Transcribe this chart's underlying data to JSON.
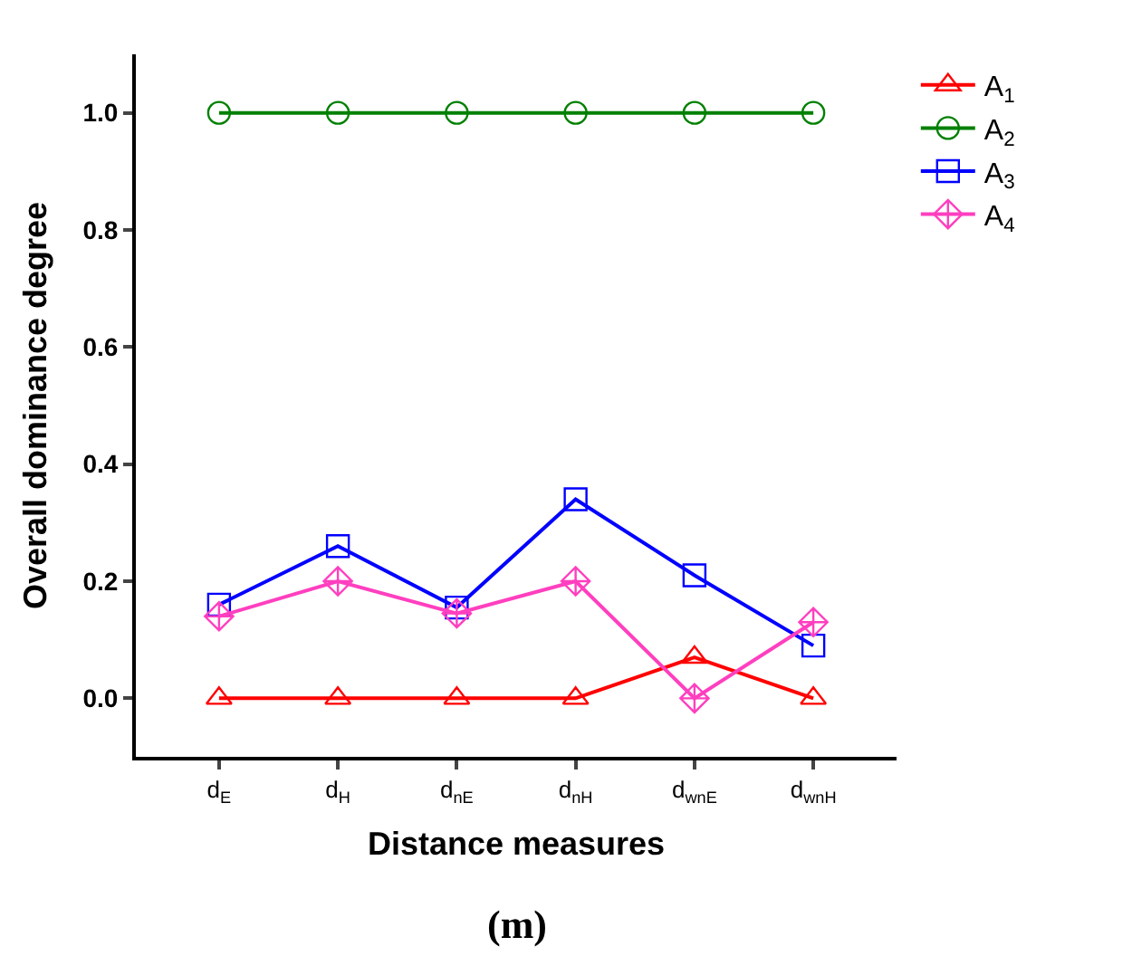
{
  "chart_data": {
    "type": "line",
    "xlabel": "Distance measures",
    "ylabel": "Overall dominance degree",
    "categories": [
      "d$_{E}$",
      "d$_{H}$",
      "d$_{nE}$",
      "d$_{nH}$",
      "d$_{wnE}$",
      "d$_{wnH}$"
    ],
    "series": [
      {
        "name": "A$_{1}$",
        "color": "#ff0000",
        "marker": "triangle",
        "values": [
          0,
          0,
          0,
          0,
          0.07,
          0
        ]
      },
      {
        "name": "A$_{2}$",
        "color": "#008000",
        "marker": "circle",
        "values": [
          1,
          1,
          1,
          1,
          1,
          1
        ]
      },
      {
        "name": "A$_{3}$",
        "color": "#0000ff",
        "marker": "square",
        "values": [
          0.16,
          0.26,
          0.155,
          0.34,
          0.21,
          0.09
        ]
      },
      {
        "name": "A$_{4}$",
        "color": "#ff3fbf",
        "marker": "diamond",
        "values": [
          0.14,
          0.2,
          0.145,
          0.2,
          0,
          0.13
        ]
      }
    ],
    "ylim": [
      -0.1,
      1.1
    ],
    "yticks": [
      {
        "value": 0,
        "label": "0.0"
      },
      0.2,
      0.4,
      0.6,
      0.8,
      {
        "value": 1,
        "label": "1.0"
      }
    ],
    "legend": "top right",
    "line_style": "solid",
    "annotations": [
      "(m)"
    ]
  }
}
